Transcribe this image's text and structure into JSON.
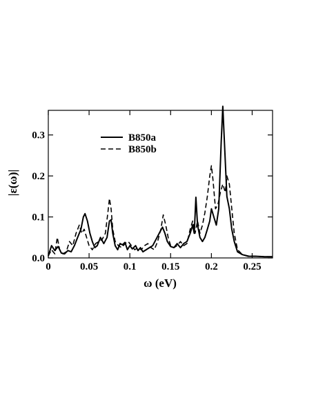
{
  "chart_data": {
    "type": "line",
    "xlabel": "ω  (eV)",
    "ylabel": "|ε(ω)|",
    "xlim": [
      0,
      0.275
    ],
    "ylim": [
      0,
      0.36
    ],
    "xticks": [
      {
        "value": 0,
        "label": "0"
      },
      {
        "value": 0.05,
        "label": "0.05"
      },
      {
        "value": 0.1,
        "label": "0.1"
      },
      {
        "value": 0.15,
        "label": "0.15"
      },
      {
        "value": 0.2,
        "label": "0.2"
      },
      {
        "value": 0.25,
        "label": "0.25"
      }
    ],
    "yticks": [
      {
        "value": 0,
        "label": "0.0"
      },
      {
        "value": 0.1,
        "label": "0.1"
      },
      {
        "value": 0.2,
        "label": "0.2"
      },
      {
        "value": 0.3,
        "label": "0.3"
      }
    ],
    "grid": false,
    "legend_position": "top-left",
    "series": [
      {
        "name": "B850a",
        "style": "solid",
        "color": "#000000",
        "points": [
          [
            0.0,
            0.005
          ],
          [
            0.004,
            0.03
          ],
          [
            0.008,
            0.018
          ],
          [
            0.012,
            0.028
          ],
          [
            0.016,
            0.012
          ],
          [
            0.02,
            0.01
          ],
          [
            0.024,
            0.018
          ],
          [
            0.028,
            0.015
          ],
          [
            0.032,
            0.03
          ],
          [
            0.036,
            0.05
          ],
          [
            0.04,
            0.07
          ],
          [
            0.043,
            0.1
          ],
          [
            0.045,
            0.108
          ],
          [
            0.048,
            0.09
          ],
          [
            0.051,
            0.06
          ],
          [
            0.054,
            0.04
          ],
          [
            0.057,
            0.025
          ],
          [
            0.06,
            0.03
          ],
          [
            0.064,
            0.05
          ],
          [
            0.068,
            0.035
          ],
          [
            0.072,
            0.05
          ],
          [
            0.075,
            0.09
          ],
          [
            0.077,
            0.093
          ],
          [
            0.079,
            0.06
          ],
          [
            0.082,
            0.03
          ],
          [
            0.085,
            0.02
          ],
          [
            0.088,
            0.035
          ],
          [
            0.091,
            0.032
          ],
          [
            0.094,
            0.038
          ],
          [
            0.097,
            0.02
          ],
          [
            0.1,
            0.03
          ],
          [
            0.103,
            0.022
          ],
          [
            0.107,
            0.03
          ],
          [
            0.11,
            0.018
          ],
          [
            0.113,
            0.025
          ],
          [
            0.116,
            0.015
          ],
          [
            0.12,
            0.02
          ],
          [
            0.124,
            0.025
          ],
          [
            0.128,
            0.03
          ],
          [
            0.132,
            0.045
          ],
          [
            0.136,
            0.06
          ],
          [
            0.14,
            0.075
          ],
          [
            0.143,
            0.06
          ],
          [
            0.146,
            0.04
          ],
          [
            0.15,
            0.028
          ],
          [
            0.154,
            0.025
          ],
          [
            0.158,
            0.035
          ],
          [
            0.162,
            0.025
          ],
          [
            0.166,
            0.035
          ],
          [
            0.17,
            0.04
          ],
          [
            0.174,
            0.06
          ],
          [
            0.177,
            0.08
          ],
          [
            0.179,
            0.06
          ],
          [
            0.181,
            0.148
          ],
          [
            0.183,
            0.08
          ],
          [
            0.186,
            0.05
          ],
          [
            0.189,
            0.04
          ],
          [
            0.192,
            0.05
          ],
          [
            0.195,
            0.07
          ],
          [
            0.198,
            0.09
          ],
          [
            0.2,
            0.12
          ],
          [
            0.203,
            0.1
          ],
          [
            0.206,
            0.08
          ],
          [
            0.209,
            0.12
          ],
          [
            0.212,
            0.28
          ],
          [
            0.214,
            0.37
          ],
          [
            0.216,
            0.28
          ],
          [
            0.219,
            0.15
          ],
          [
            0.222,
            0.12
          ],
          [
            0.225,
            0.07
          ],
          [
            0.228,
            0.04
          ],
          [
            0.232,
            0.015
          ],
          [
            0.238,
            0.008
          ],
          [
            0.245,
            0.004
          ],
          [
            0.255,
            0.004
          ],
          [
            0.265,
            0.003
          ],
          [
            0.275,
            0.003
          ]
        ]
      },
      {
        "name": "B850b",
        "style": "dashed",
        "color": "#000000",
        "points": [
          [
            0.0,
            0.005
          ],
          [
            0.004,
            0.02
          ],
          [
            0.008,
            0.01
          ],
          [
            0.011,
            0.05
          ],
          [
            0.014,
            0.02
          ],
          [
            0.018,
            0.01
          ],
          [
            0.022,
            0.015
          ],
          [
            0.026,
            0.04
          ],
          [
            0.03,
            0.03
          ],
          [
            0.034,
            0.06
          ],
          [
            0.038,
            0.08
          ],
          [
            0.041,
            0.06
          ],
          [
            0.044,
            0.07
          ],
          [
            0.047,
            0.05
          ],
          [
            0.05,
            0.03
          ],
          [
            0.054,
            0.02
          ],
          [
            0.058,
            0.035
          ],
          [
            0.062,
            0.04
          ],
          [
            0.066,
            0.045
          ],
          [
            0.07,
            0.06
          ],
          [
            0.073,
            0.11
          ],
          [
            0.075,
            0.145
          ],
          [
            0.077,
            0.12
          ],
          [
            0.079,
            0.07
          ],
          [
            0.082,
            0.04
          ],
          [
            0.086,
            0.03
          ],
          [
            0.09,
            0.025
          ],
          [
            0.094,
            0.035
          ],
          [
            0.098,
            0.04
          ],
          [
            0.102,
            0.03
          ],
          [
            0.106,
            0.02
          ],
          [
            0.11,
            0.025
          ],
          [
            0.114,
            0.02
          ],
          [
            0.118,
            0.03
          ],
          [
            0.122,
            0.035
          ],
          [
            0.126,
            0.025
          ],
          [
            0.13,
            0.02
          ],
          [
            0.134,
            0.04
          ],
          [
            0.138,
            0.07
          ],
          [
            0.141,
            0.105
          ],
          [
            0.144,
            0.08
          ],
          [
            0.147,
            0.05
          ],
          [
            0.15,
            0.03
          ],
          [
            0.154,
            0.025
          ],
          [
            0.158,
            0.03
          ],
          [
            0.162,
            0.04
          ],
          [
            0.166,
            0.03
          ],
          [
            0.17,
            0.035
          ],
          [
            0.174,
            0.07
          ],
          [
            0.177,
            0.09
          ],
          [
            0.18,
            0.06
          ],
          [
            0.183,
            0.09
          ],
          [
            0.186,
            0.06
          ],
          [
            0.189,
            0.08
          ],
          [
            0.192,
            0.11
          ],
          [
            0.195,
            0.15
          ],
          [
            0.198,
            0.2
          ],
          [
            0.2,
            0.225
          ],
          [
            0.202,
            0.19
          ],
          [
            0.205,
            0.12
          ],
          [
            0.208,
            0.13
          ],
          [
            0.211,
            0.16
          ],
          [
            0.214,
            0.18
          ],
          [
            0.217,
            0.16
          ],
          [
            0.219,
            0.2
          ],
          [
            0.222,
            0.18
          ],
          [
            0.225,
            0.12
          ],
          [
            0.228,
            0.06
          ],
          [
            0.232,
            0.02
          ],
          [
            0.238,
            0.008
          ],
          [
            0.245,
            0.005
          ],
          [
            0.255,
            0.004
          ],
          [
            0.265,
            0.003
          ],
          [
            0.275,
            0.003
          ]
        ]
      }
    ]
  }
}
